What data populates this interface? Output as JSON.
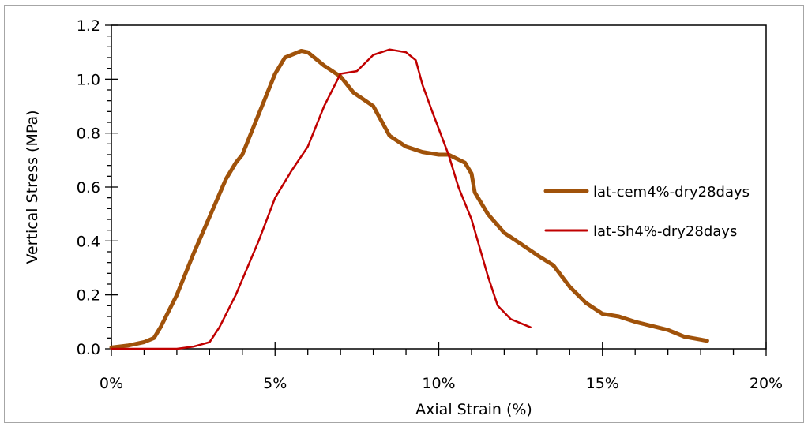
{
  "chart_data": {
    "type": "line",
    "title": "",
    "xlabel": "Axial Strain (%)",
    "ylabel": "Vertical Stress (MPa)",
    "xlim": [
      0,
      20
    ],
    "ylim": [
      0,
      1.2
    ],
    "x_ticks": [
      0,
      5,
      10,
      15,
      20
    ],
    "x_tick_labels": [
      "0%",
      "5%",
      "10%",
      "15%",
      "20%"
    ],
    "y_ticks": [
      0,
      0.2,
      0.4,
      0.6,
      0.8,
      1.0,
      1.2
    ],
    "y_tick_labels": [
      "0.0",
      "0.2",
      "0.4",
      "0.6",
      "0.8",
      "1.0",
      "1.2"
    ],
    "grid": false,
    "legend_position": "right",
    "series": [
      {
        "name": "lat-cem4%-dry28days",
        "color": "#a0520a",
        "x": [
          0,
          0.5,
          1,
          1.3,
          1.5,
          2,
          2.5,
          3,
          3.5,
          3.8,
          4,
          4.5,
          5,
          5.3,
          5.8,
          6,
          6.5,
          7,
          7.4,
          8,
          8.5,
          9,
          9.5,
          10,
          10.3,
          10.8,
          11,
          11.1,
          11.5,
          12,
          12.5,
          13.1,
          13.5,
          14,
          14.5,
          15,
          15.5,
          16,
          17,
          17.5,
          18.2
        ],
        "y": [
          0.005,
          0.012,
          0.025,
          0.04,
          0.08,
          0.2,
          0.35,
          0.49,
          0.63,
          0.69,
          0.72,
          0.87,
          1.02,
          1.08,
          1.105,
          1.1,
          1.05,
          1.01,
          0.95,
          0.9,
          0.79,
          0.75,
          0.73,
          0.72,
          0.72,
          0.69,
          0.65,
          0.58,
          0.5,
          0.43,
          0.39,
          0.34,
          0.31,
          0.23,
          0.17,
          0.13,
          0.12,
          0.1,
          0.07,
          0.045,
          0.03
        ]
      },
      {
        "name": "lat-Sh4%-dry28days",
        "color": "#c00000",
        "x": [
          0,
          2,
          2.5,
          3,
          3.3,
          3.8,
          4.5,
          5,
          5.5,
          6,
          6.5,
          7,
          7.5,
          8,
          8.5,
          9,
          9.3,
          9.5,
          9.8,
          10.3,
          10.6,
          11,
          11.5,
          11.8,
          12.2,
          12.8
        ],
        "y": [
          0,
          0,
          0.008,
          0.025,
          0.08,
          0.2,
          0.4,
          0.56,
          0.66,
          0.75,
          0.9,
          1.02,
          1.03,
          1.09,
          1.11,
          1.1,
          1.07,
          0.98,
          0.88,
          0.72,
          0.6,
          0.48,
          0.27,
          0.16,
          0.11,
          0.08
        ]
      }
    ]
  }
}
